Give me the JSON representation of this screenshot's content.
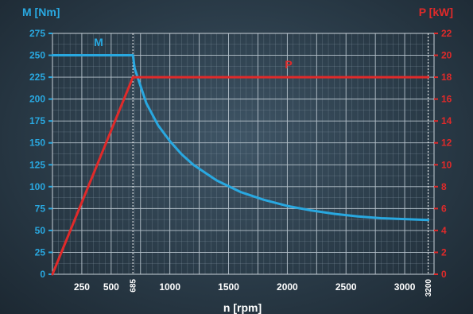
{
  "chart_data": {
    "type": "line",
    "xlabel": "n [rpm]",
    "ylabel_left": "M [Nm]",
    "ylabel_right": "P [kW]",
    "xlim": [
      0,
      3250
    ],
    "ylim_left": [
      0,
      275
    ],
    "ylim_right": [
      0,
      22
    ],
    "x_ticks": [
      {
        "value": 250,
        "label": "250"
      },
      {
        "value": 500,
        "label": "500"
      },
      {
        "value": 1000,
        "label": "1000"
      },
      {
        "value": 1500,
        "label": "1500"
      },
      {
        "value": 2000,
        "label": "2000"
      },
      {
        "value": 2500,
        "label": "2500"
      },
      {
        "value": 3000,
        "label": "3000"
      }
    ],
    "x_ticks_rotated": [
      {
        "value": 685,
        "label": "685"
      },
      {
        "value": 3200,
        "label": "3200"
      }
    ],
    "y_ticks_left": [
      {
        "value": 0,
        "label": "0"
      },
      {
        "value": 25,
        "label": "25"
      },
      {
        "value": 50,
        "label": "50"
      },
      {
        "value": 75,
        "label": "75"
      },
      {
        "value": 100,
        "label": "100"
      },
      {
        "value": 125,
        "label": "125"
      },
      {
        "value": 150,
        "label": "150"
      },
      {
        "value": 175,
        "label": "175"
      },
      {
        "value": 200,
        "label": "200"
      },
      {
        "value": 225,
        "label": "225"
      },
      {
        "value": 250,
        "label": "250"
      },
      {
        "value": 275,
        "label": "275"
      }
    ],
    "y_ticks_right": [
      {
        "value": 0,
        "label": "0"
      },
      {
        "value": 2,
        "label": "2"
      },
      {
        "value": 4,
        "label": "4"
      },
      {
        "value": 6,
        "label": "6"
      },
      {
        "value": 8,
        "label": "8"
      },
      {
        "value": 10,
        "label": "10"
      },
      {
        "value": 12,
        "label": "12"
      },
      {
        "value": 14,
        "label": "14"
      },
      {
        "value": 16,
        "label": "16"
      },
      {
        "value": 18,
        "label": "18"
      },
      {
        "value": 20,
        "label": "20"
      },
      {
        "value": 22,
        "label": "22"
      }
    ],
    "grid": true,
    "series": [
      {
        "name": "M",
        "axis": "left",
        "color": "#29a8e0",
        "x": [
          0,
          685,
          700,
          750,
          800,
          900,
          1000,
          1100,
          1200,
          1400,
          1600,
          1800,
          2000,
          2200,
          2400,
          2600,
          2800,
          3000,
          3200
        ],
        "y": [
          250,
          250,
          235,
          215,
          195,
          170,
          152,
          137,
          125,
          107,
          94,
          85,
          78,
          73,
          69,
          66,
          64,
          63,
          62
        ]
      },
      {
        "name": "P",
        "axis": "right",
        "color": "#e02a2a",
        "x": [
          0,
          685,
          3200
        ],
        "y": [
          0,
          18,
          18
        ]
      }
    ]
  }
}
